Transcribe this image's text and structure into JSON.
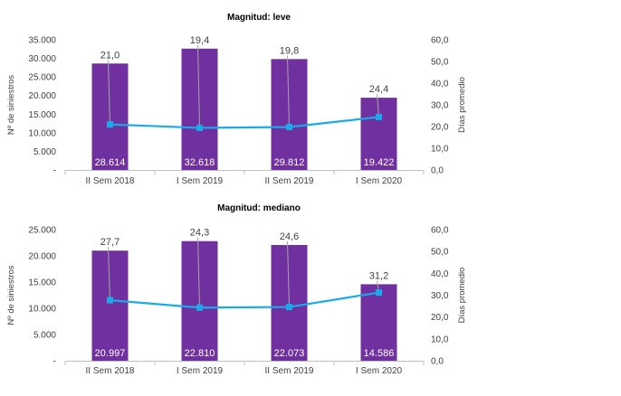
{
  "chart_data": [
    {
      "type": "bar",
      "title": "Magnitud:  leve",
      "xlabel": "",
      "ylabel": "Nº de siniestros",
      "y2label": "Días  promedio",
      "categories": [
        "II Sem   2018",
        "I Sem   2019",
        "II Sem   2019",
        "I Sem   2020"
      ],
      "ylim": [
        0,
        35000
      ],
      "y_ticks": [
        "-",
        "5.000",
        "10.000",
        "15.000",
        "20.000",
        "25.000",
        "30.000",
        "35.000"
      ],
      "y2lim": [
        0,
        60
      ],
      "y2_ticks": [
        "0,0",
        "10,0",
        "20,0",
        "30,0",
        "40,0",
        "50,0",
        "60,0"
      ],
      "series": [
        {
          "kind": "bar",
          "values": [
            28614,
            32618,
            29812,
            19422
          ],
          "labels": [
            "28.614",
            "32.618",
            "29.812",
            "19.422"
          ]
        },
        {
          "kind": "line",
          "axis": "right",
          "values": [
            21.0,
            19.4,
            19.8,
            24.4
          ],
          "labels": [
            "21,0",
            "19,4",
            "19,8",
            "24,4"
          ]
        }
      ],
      "grid": false,
      "legend": "none"
    },
    {
      "type": "bar",
      "title": "Magnitud:  mediano",
      "xlabel": "",
      "ylabel": "Nº de siniestros",
      "y2label": "Días  promedio",
      "categories": [
        "II Sem   2018",
        "I Sem   2019",
        "II Sem   2019",
        "I Sem   2020"
      ],
      "ylim": [
        0,
        25000
      ],
      "y_ticks": [
        "-",
        "5.000",
        "10.000",
        "15.000",
        "20.000",
        "25.000"
      ],
      "y2lim": [
        0,
        60
      ],
      "y2_ticks": [
        "0,0",
        "10,0",
        "20,0",
        "30,0",
        "40,0",
        "50,0",
        "60,0"
      ],
      "series": [
        {
          "kind": "bar",
          "values": [
            20997,
            22810,
            22073,
            14586
          ],
          "labels": [
            "20.997",
            "22.810",
            "22.073",
            "14.586"
          ]
        },
        {
          "kind": "line",
          "axis": "right",
          "values": [
            27.7,
            24.3,
            24.6,
            31.2
          ],
          "labels": [
            "27,7",
            "24,3",
            "24,6",
            "31,2"
          ]
        }
      ],
      "grid": false,
      "legend": "none"
    }
  ],
  "colors": {
    "bar": "#7030a0",
    "line": "#1aaaea",
    "axis": "#bfbfbf",
    "text": "#404040",
    "leader": "#a6a6a6"
  }
}
